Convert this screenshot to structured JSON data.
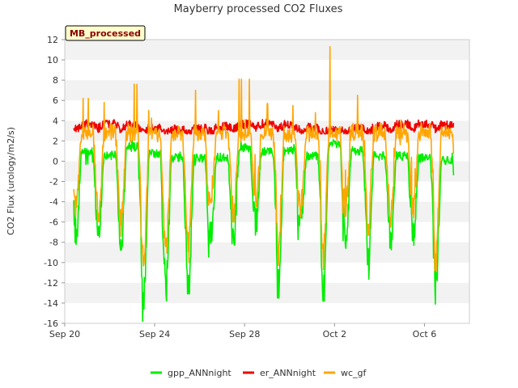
{
  "chart_data": {
    "type": "line",
    "title": "Mayberry processed CO2 Fluxes",
    "ylabel": "CO2 Flux (urology/m2/s)",
    "xlabel": "",
    "badge": "MB_processed",
    "ylim": [
      -16,
      12
    ],
    "yticks": [
      -16,
      -14,
      -12,
      -10,
      -8,
      -6,
      -4,
      -2,
      0,
      2,
      4,
      6,
      8,
      10,
      12
    ],
    "x_range_days": [
      0,
      18
    ],
    "xticks": [
      {
        "day": 0,
        "label": "Sep 20"
      },
      {
        "day": 4,
        "label": "Sep 24"
      },
      {
        "day": 8,
        "label": "Sep 28"
      },
      {
        "day": 12,
        "label": "Oct 2"
      },
      {
        "day": 16,
        "label": "Oct 6"
      }
    ],
    "data_span_days": [
      0.4,
      17.3
    ],
    "grid": "horizontal-bands",
    "legend_placement": "bottom",
    "series": [
      {
        "name": "gpp_ANNnight",
        "color": "#00ee00",
        "daily_minima": [
          -8.2,
          -7.5,
          -10.1,
          -15.8,
          -13.8,
          -13.1,
          -8.1,
          -9.6,
          -7.3,
          -13.5,
          -7.6,
          -13.8,
          -8.6,
          -10.2,
          -9.0,
          -8.3,
          -14.1
        ],
        "daily_maxima": [
          1.8,
          1.2,
          2.8,
          1.5,
          0.7,
          0.5,
          0.8,
          2.7,
          1.9,
          2.0,
          1.0,
          3.5,
          2.0,
          1.0,
          1.0,
          0.6,
          0.2
        ]
      },
      {
        "name": "er_ANNnight",
        "color": "#ee0000",
        "typical_range": [
          2.7,
          4.7
        ]
      },
      {
        "name": "wc_gf",
        "color": "#ffa500",
        "daily_minima": [
          -5.5,
          -6.0,
          -7.4,
          -12.0,
          -10.8,
          -10.0,
          -4.0,
          -6.0,
          -4.5,
          -10.3,
          -5.0,
          -10.7,
          -5.5,
          -7.3,
          -6.5,
          -5.6,
          -10.8
        ],
        "daily_maxima": [
          6.2,
          5.8,
          7.6,
          5.0,
          4.3,
          7.0,
          5.0,
          8.1,
          5.7,
          5.5,
          4.8,
          11.3,
          6.5,
          4.7,
          4.6,
          4.0,
          3.5
        ]
      }
    ]
  }
}
